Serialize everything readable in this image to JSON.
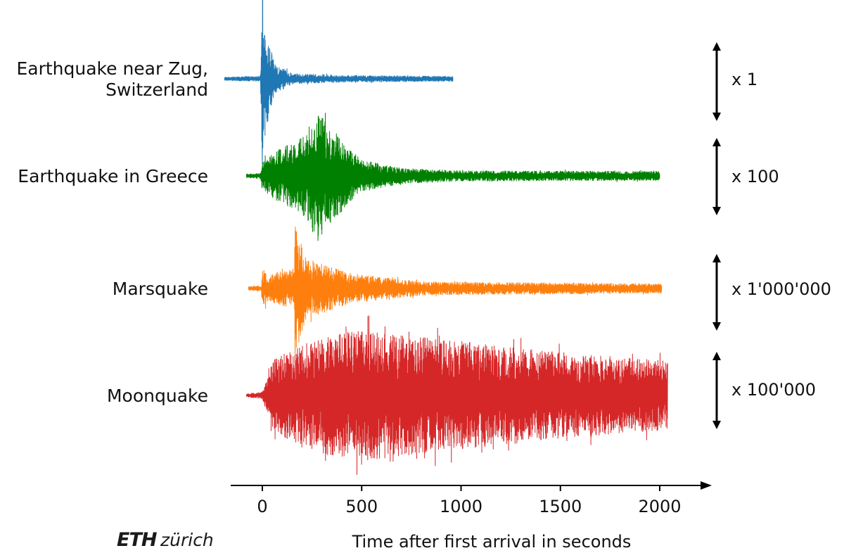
{
  "chart_data": {
    "type": "line",
    "xlabel": "Time after first arrival in seconds",
    "xlim": [
      -150,
      2250
    ],
    "x_ticks": [
      0,
      500,
      1000,
      1500,
      2000
    ],
    "grid": false,
    "series": [
      {
        "name": "Earthquake near Zug, Switzerland",
        "label_lines": [
          "Earthquake near Zug,",
          "Switzerland"
        ],
        "color": "#1f77b4",
        "scale_factor": "x 1",
        "x_range": [
          -190,
          960
        ],
        "peak_time": 0,
        "envelope": [
          [
            -190,
            0.02
          ],
          [
            -10,
            0.03
          ],
          [
            0,
            1.0
          ],
          [
            25,
            0.55
          ],
          [
            60,
            0.18
          ],
          [
            150,
            0.06
          ],
          [
            400,
            0.04
          ],
          [
            960,
            0.03
          ]
        ]
      },
      {
        "name": "Earthquake in Greece",
        "label_lines": [
          "Earthquake in Greece"
        ],
        "color": "#008000",
        "scale_factor": "x 100",
        "x_range": [
          -80,
          2000
        ],
        "peak_time": 280,
        "envelope": [
          [
            -80,
            0.03
          ],
          [
            -10,
            0.04
          ],
          [
            0,
            0.22
          ],
          [
            100,
            0.45
          ],
          [
            200,
            0.6
          ],
          [
            280,
            1.0
          ],
          [
            400,
            0.55
          ],
          [
            500,
            0.25
          ],
          [
            700,
            0.12
          ],
          [
            1000,
            0.08
          ],
          [
            2000,
            0.07
          ]
        ]
      },
      {
        "name": "Marsquake",
        "label_lines": [
          "Marsquake"
        ],
        "color": "#ff7f0e",
        "scale_factor": "x 1'000'000",
        "x_range": [
          -70,
          2010
        ],
        "peak_time": 165,
        "envelope": [
          [
            -70,
            0.03
          ],
          [
            -5,
            0.04
          ],
          [
            0,
            0.3
          ],
          [
            30,
            0.2
          ],
          [
            160,
            0.3
          ],
          [
            165,
            1.0
          ],
          [
            220,
            0.45
          ],
          [
            450,
            0.22
          ],
          [
            800,
            0.1
          ],
          [
            2010,
            0.07
          ]
        ]
      },
      {
        "name": "Moonquake",
        "label_lines": [
          "Moonquake"
        ],
        "color": "#d62728",
        "scale_factor": "x 100'000",
        "x_range": [
          -80,
          2040
        ],
        "peak_time": 500,
        "envelope": [
          [
            -80,
            0.02
          ],
          [
            0,
            0.05
          ],
          [
            60,
            0.55
          ],
          [
            300,
            0.85
          ],
          [
            500,
            0.95
          ],
          [
            800,
            0.85
          ],
          [
            1200,
            0.72
          ],
          [
            1600,
            0.6
          ],
          [
            2040,
            0.5
          ]
        ]
      }
    ]
  },
  "logo": {
    "eth": "ETH",
    "zurich": "zürich"
  }
}
